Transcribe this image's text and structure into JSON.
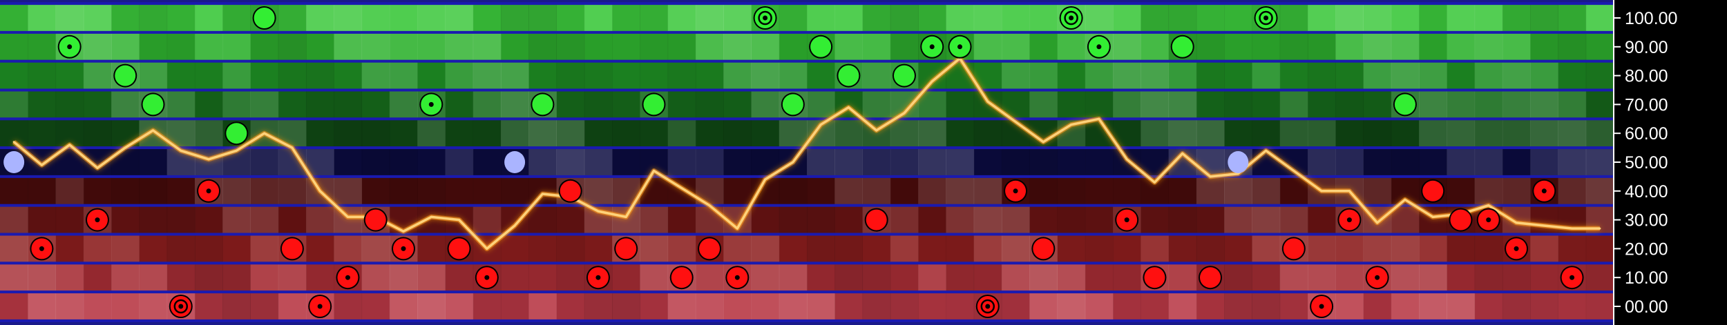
{
  "chart_data": {
    "type": "line",
    "title": "",
    "xlabel": "",
    "ylabel": "",
    "ylim": [
      -5,
      105
    ],
    "grid": false,
    "legend": "none",
    "y_ticks": [
      100,
      90,
      80,
      70,
      60,
      50,
      40,
      30,
      20,
      10,
      0
    ],
    "y_tick_labels": [
      "100.00",
      "90.00",
      "80.00",
      "70.00",
      "60.00",
      "50.00",
      "40.00",
      "30.00",
      "20.00",
      "10.00",
      "00.00"
    ],
    "x_count": 58,
    "colors": {
      "background": "#000000",
      "axis": "#ffffff",
      "line": "#ffd27a",
      "line_glow": "#ff9a1a",
      "band_separator": "#1a1ab0",
      "high": "#33ee33",
      "mid": "#aab4ff",
      "low": "#ff1010"
    },
    "band_colors": [
      {
        "center": 100,
        "color": "#3cc83c"
      },
      {
        "center": 90,
        "color": "#2fb22f"
      },
      {
        "center": 80,
        "color": "#1f8f24"
      },
      {
        "center": 70,
        "color": "#176c1c"
      },
      {
        "center": 60,
        "color": "#104a15"
      },
      {
        "center": 50,
        "color": "#0c0c40"
      },
      {
        "center": 40,
        "color": "#4a0c0c"
      },
      {
        "center": 30,
        "color": "#6a1414"
      },
      {
        "center": 20,
        "color": "#8c1e1e"
      },
      {
        "center": 10,
        "color": "#a62d35"
      },
      {
        "center": 0,
        "color": "#b83845"
      }
    ],
    "series": [
      {
        "values": [
          57,
          49,
          56,
          48,
          55,
          61,
          54,
          51,
          54,
          60,
          55,
          40,
          31,
          31,
          26,
          31,
          30,
          20,
          28,
          39,
          38,
          33,
          31,
          47,
          41,
          35,
          27,
          44,
          50,
          63,
          69,
          61,
          67,
          78,
          86,
          71,
          64,
          57,
          63,
          65,
          51,
          43,
          53,
          45,
          46,
          54,
          47,
          40,
          40,
          29,
          37,
          31,
          32,
          35,
          29,
          28,
          27,
          27
        ]
      }
    ],
    "points": [
      {
        "x": 9,
        "y": 100,
        "kind": "high",
        "style": "plain"
      },
      {
        "x": 27,
        "y": 100,
        "kind": "high",
        "style": "double"
      },
      {
        "x": 38,
        "y": 100,
        "kind": "high",
        "style": "double"
      },
      {
        "x": 45,
        "y": 100,
        "kind": "high",
        "style": "double"
      },
      {
        "x": 2,
        "y": 90,
        "kind": "high",
        "style": "dot"
      },
      {
        "x": 29,
        "y": 90,
        "kind": "high",
        "style": "plain"
      },
      {
        "x": 33,
        "y": 90,
        "kind": "high",
        "style": "dot"
      },
      {
        "x": 34,
        "y": 90,
        "kind": "high",
        "style": "dot"
      },
      {
        "x": 39,
        "y": 90,
        "kind": "high",
        "style": "dot"
      },
      {
        "x": 42,
        "y": 90,
        "kind": "high",
        "style": "plain"
      },
      {
        "x": 4,
        "y": 80,
        "kind": "high",
        "style": "plain"
      },
      {
        "x": 30,
        "y": 80,
        "kind": "high",
        "style": "plain"
      },
      {
        "x": 32,
        "y": 80,
        "kind": "high",
        "style": "plain"
      },
      {
        "x": 5,
        "y": 70,
        "kind": "high",
        "style": "plain"
      },
      {
        "x": 15,
        "y": 70,
        "kind": "high",
        "style": "dot"
      },
      {
        "x": 19,
        "y": 70,
        "kind": "high",
        "style": "plain"
      },
      {
        "x": 23,
        "y": 70,
        "kind": "high",
        "style": "plain"
      },
      {
        "x": 28,
        "y": 70,
        "kind": "high",
        "style": "plain"
      },
      {
        "x": 50,
        "y": 70,
        "kind": "high",
        "style": "plain"
      },
      {
        "x": 8,
        "y": 60,
        "kind": "high",
        "style": "plain"
      },
      {
        "x": 0,
        "y": 50,
        "kind": "mid",
        "style": "plain"
      },
      {
        "x": 18,
        "y": 50,
        "kind": "mid",
        "style": "plain"
      },
      {
        "x": 44,
        "y": 50,
        "kind": "mid",
        "style": "plain"
      },
      {
        "x": 7,
        "y": 40,
        "kind": "low",
        "style": "dot"
      },
      {
        "x": 20,
        "y": 40,
        "kind": "low",
        "style": "plain"
      },
      {
        "x": 36,
        "y": 40,
        "kind": "low",
        "style": "dot"
      },
      {
        "x": 51,
        "y": 40,
        "kind": "low",
        "style": "plain"
      },
      {
        "x": 55,
        "y": 40,
        "kind": "low",
        "style": "dot"
      },
      {
        "x": 3,
        "y": 30,
        "kind": "low",
        "style": "dot"
      },
      {
        "x": 13,
        "y": 30,
        "kind": "low",
        "style": "plain"
      },
      {
        "x": 31,
        "y": 30,
        "kind": "low",
        "style": "plain"
      },
      {
        "x": 40,
        "y": 30,
        "kind": "low",
        "style": "dot"
      },
      {
        "x": 48,
        "y": 30,
        "kind": "low",
        "style": "dot"
      },
      {
        "x": 52,
        "y": 30,
        "kind": "low",
        "style": "plain"
      },
      {
        "x": 53,
        "y": 30,
        "kind": "low",
        "style": "dot"
      },
      {
        "x": 1,
        "y": 20,
        "kind": "low",
        "style": "dot"
      },
      {
        "x": 10,
        "y": 20,
        "kind": "low",
        "style": "plain"
      },
      {
        "x": 14,
        "y": 20,
        "kind": "low",
        "style": "dot"
      },
      {
        "x": 16,
        "y": 20,
        "kind": "low",
        "style": "plain"
      },
      {
        "x": 22,
        "y": 20,
        "kind": "low",
        "style": "plain"
      },
      {
        "x": 25,
        "y": 20,
        "kind": "low",
        "style": "plain"
      },
      {
        "x": 37,
        "y": 20,
        "kind": "low",
        "style": "plain"
      },
      {
        "x": 46,
        "y": 20,
        "kind": "low",
        "style": "plain"
      },
      {
        "x": 54,
        "y": 20,
        "kind": "low",
        "style": "dot"
      },
      {
        "x": 12,
        "y": 10,
        "kind": "low",
        "style": "dot"
      },
      {
        "x": 17,
        "y": 10,
        "kind": "low",
        "style": "dot"
      },
      {
        "x": 21,
        "y": 10,
        "kind": "low",
        "style": "dot"
      },
      {
        "x": 24,
        "y": 10,
        "kind": "low",
        "style": "plain"
      },
      {
        "x": 26,
        "y": 10,
        "kind": "low",
        "style": "dot"
      },
      {
        "x": 41,
        "y": 10,
        "kind": "low",
        "style": "plain"
      },
      {
        "x": 43,
        "y": 10,
        "kind": "low",
        "style": "plain"
      },
      {
        "x": 49,
        "y": 10,
        "kind": "low",
        "style": "dot"
      },
      {
        "x": 56,
        "y": 10,
        "kind": "low",
        "style": "dot"
      },
      {
        "x": 6,
        "y": 0,
        "kind": "low",
        "style": "double"
      },
      {
        "x": 11,
        "y": 0,
        "kind": "low",
        "style": "dot"
      },
      {
        "x": 35,
        "y": 0,
        "kind": "low",
        "style": "double"
      },
      {
        "x": 47,
        "y": 0,
        "kind": "low",
        "style": "dot"
      }
    ]
  }
}
